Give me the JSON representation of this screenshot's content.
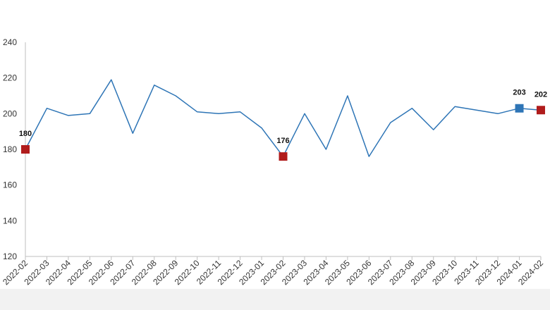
{
  "chart_data": {
    "type": "line",
    "categories": [
      "2022-02",
      "2022-03",
      "2022-04",
      "2022-05",
      "2022-06",
      "2022-07",
      "2022-08",
      "2022-09",
      "2022-10",
      "2022-11",
      "2022-12",
      "2023-01",
      "2023-02",
      "2023-03",
      "2023-04",
      "2023-05",
      "2023-06",
      "2023-07",
      "2023-08",
      "2023-09",
      "2023-10",
      "2023-11",
      "2023-12",
      "2024-01",
      "2024-02"
    ],
    "series": [
      {
        "values": [
          180,
          203,
          199,
          200,
          219,
          189,
          216,
          210,
          201,
          200,
          201,
          192,
          176,
          200,
          180,
          210,
          176,
          195,
          203,
          191,
          204,
          202,
          200,
          203,
          202
        ],
        "color": "#2e75b6"
      }
    ],
    "highlighted_points": [
      {
        "category": "2022-02",
        "value": 180,
        "label": "180",
        "color": "#b01c1c"
      },
      {
        "category": "2023-02",
        "value": 176,
        "label": "176",
        "color": "#b01c1c"
      },
      {
        "category": "2024-01",
        "value": 203,
        "label": "203",
        "color": "#2e75b6"
      },
      {
        "category": "2024-02",
        "value": 202,
        "label": "202",
        "color": "#b01c1c"
      }
    ],
    "y_ticks": [
      120,
      140,
      160,
      180,
      200,
      220,
      240
    ],
    "ylim": [
      120,
      240
    ],
    "grid": false,
    "legend": "none",
    "title": "",
    "xlabel": "",
    "ylabel": ""
  },
  "colors": {
    "line": "#2e75b6",
    "axis": "#bfbfbf",
    "band": "#f2f2f2"
  }
}
